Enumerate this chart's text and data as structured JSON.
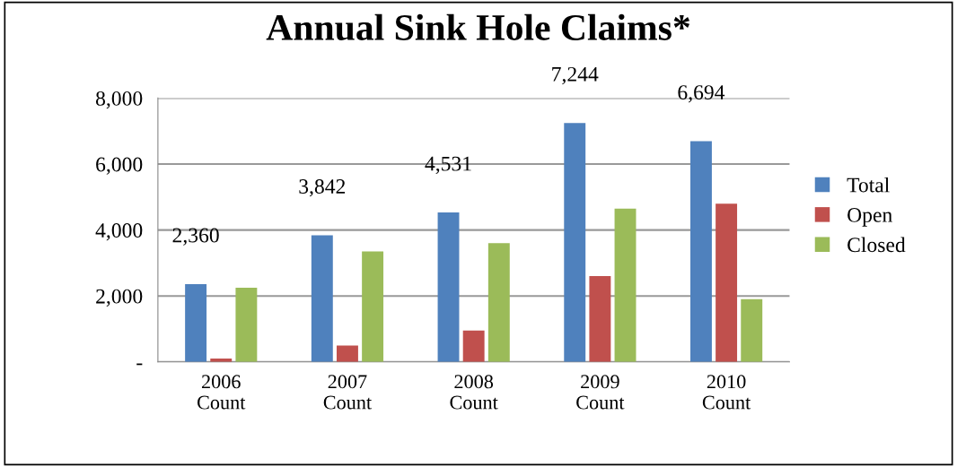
{
  "chart_data": {
    "type": "bar",
    "title": "Annual Sink Hole Claims*",
    "categories": [
      "2006\nCount",
      "2007\nCount",
      "2008\nCount",
      "2009\nCount",
      "2010\nCount"
    ],
    "series": [
      {
        "name": "Total",
        "color": "#4f81bd",
        "values": [
          2360,
          3842,
          4531,
          7244,
          6694
        ],
        "value_labels": [
          "2,360",
          "3,842",
          "4,531",
          "7,244",
          "6,694"
        ]
      },
      {
        "name": "Open",
        "color": "#c0504d",
        "values": [
          100,
          500,
          950,
          2600,
          4800
        ]
      },
      {
        "name": "Closed",
        "color": "#9bbb59",
        "values": [
          2250,
          3350,
          3600,
          4650,
          1900
        ]
      }
    ],
    "ylim": [
      0,
      8000
    ],
    "yticks": [
      {
        "value": 0,
        "label": "-"
      },
      {
        "value": 2000,
        "label": "2,000"
      },
      {
        "value": 4000,
        "label": "4,000"
      },
      {
        "value": 6000,
        "label": "6,000"
      },
      {
        "value": 8000,
        "label": "8,000"
      }
    ],
    "grid": "y",
    "legend": "right"
  }
}
